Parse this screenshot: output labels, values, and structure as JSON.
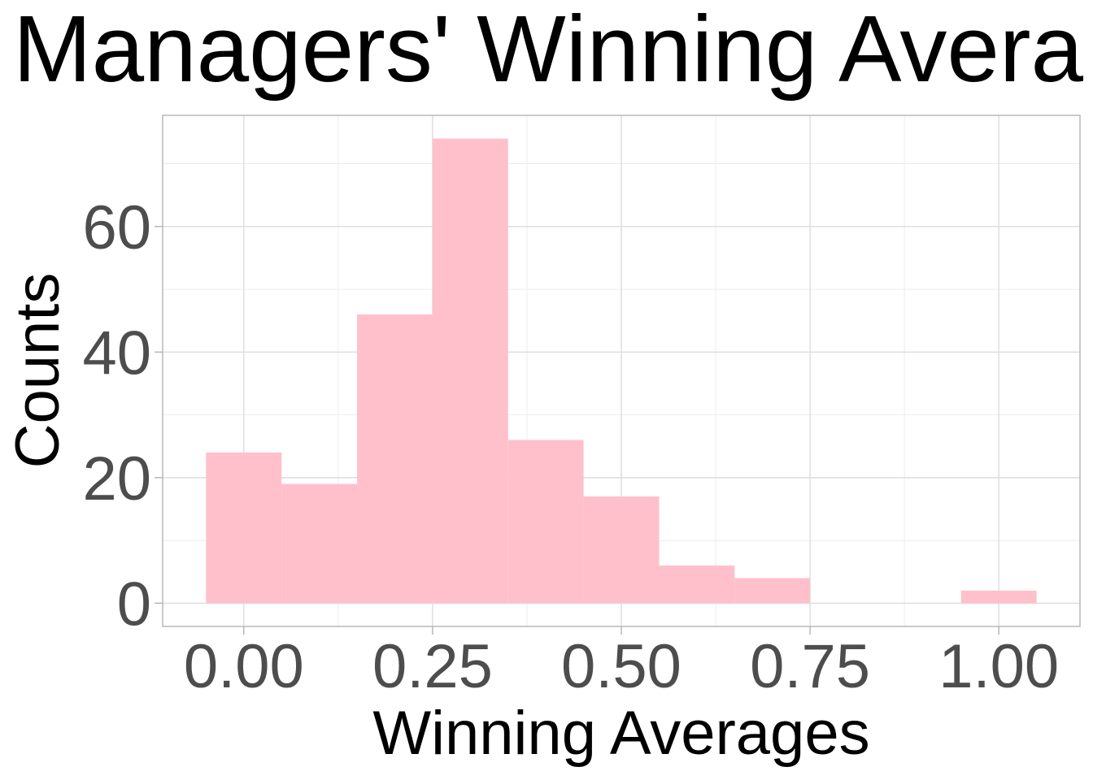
{
  "chart_data": {
    "type": "bar",
    "title": "Managers' Winning Avera",
    "xlabel": "Winning Averages",
    "ylabel": "Counts",
    "bin_width": 0.1,
    "bins": [
      {
        "x0": -0.05,
        "x1": 0.05,
        "count": 24
      },
      {
        "x0": 0.05,
        "x1": 0.15,
        "count": 19
      },
      {
        "x0": 0.15,
        "x1": 0.25,
        "count": 46
      },
      {
        "x0": 0.25,
        "x1": 0.35,
        "count": 74
      },
      {
        "x0": 0.35,
        "x1": 0.45,
        "count": 26
      },
      {
        "x0": 0.45,
        "x1": 0.55,
        "count": 17
      },
      {
        "x0": 0.55,
        "x1": 0.65,
        "count": 6
      },
      {
        "x0": 0.65,
        "x1": 0.75,
        "count": 4
      },
      {
        "x0": 0.75,
        "x1": 0.85,
        "count": 0
      },
      {
        "x0": 0.85,
        "x1": 0.95,
        "count": 0
      },
      {
        "x0": 0.95,
        "x1": 1.05,
        "count": 2
      }
    ],
    "x_ticks": [
      0,
      0.25,
      0.5,
      0.75,
      1.0
    ],
    "x_tick_labels": [
      "0.00",
      "0.25",
      "0.50",
      "0.75",
      "1.00"
    ],
    "y_ticks": [
      0,
      20,
      40,
      60
    ],
    "y_tick_labels": [
      "0",
      "20",
      "40",
      "60"
    ],
    "xlim": [
      -0.1075,
      1.1075
    ],
    "ylim": [
      -3.7,
      77.7
    ],
    "grid": true,
    "bar_color": "#ffc0cb",
    "panel_border_color": "#b3b3b3"
  }
}
